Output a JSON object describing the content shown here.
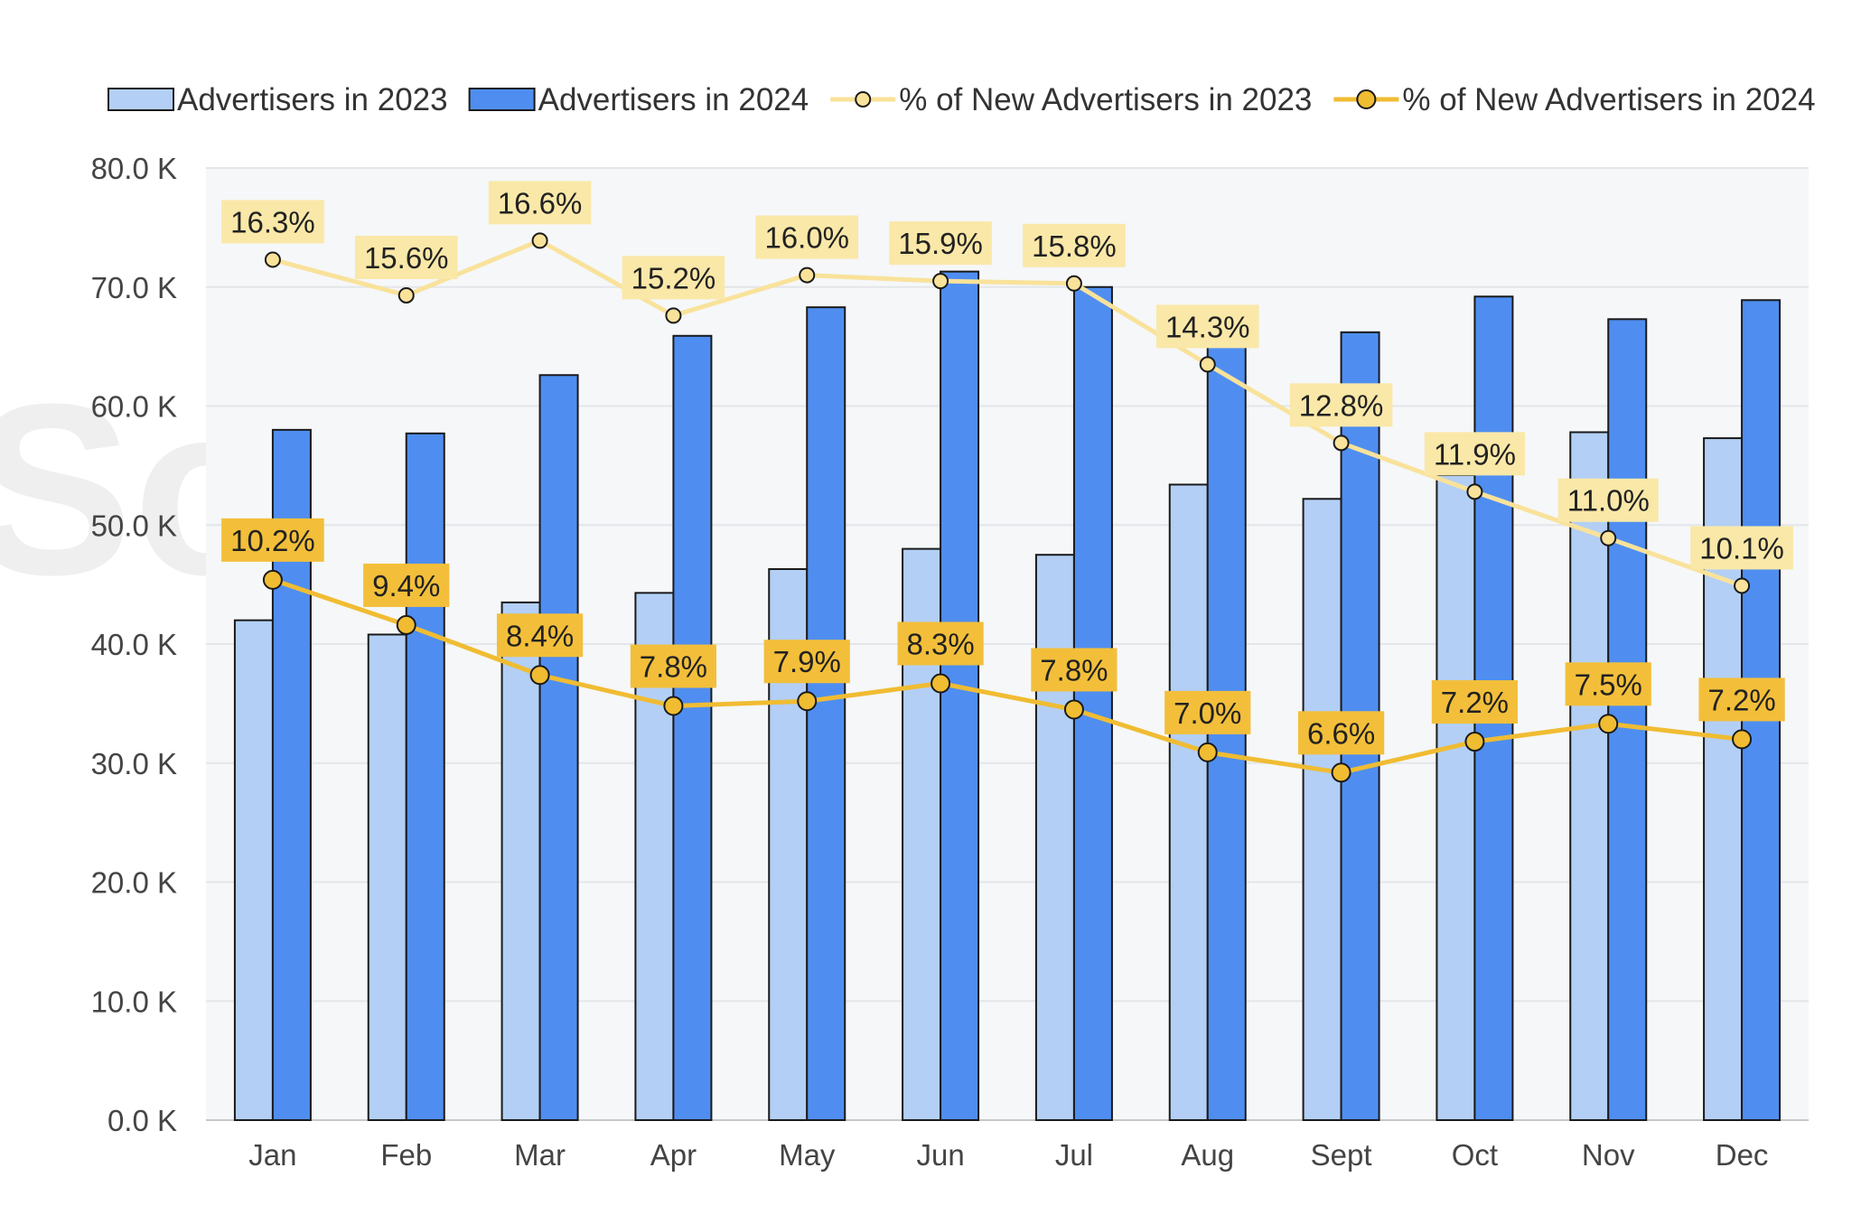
{
  "chart_data": {
    "type": "bar",
    "watermark": "SocialPeta",
    "categories": [
      "Jan",
      "Feb",
      "Mar",
      "Apr",
      "May",
      "Jun",
      "Jul",
      "Aug",
      "Sept",
      "Oct",
      "Nov",
      "Dec"
    ],
    "y_axis": {
      "min": 0,
      "max": 80000,
      "step": 10000,
      "tick_labels": [
        "0.0 K",
        "10.0 K",
        "20.0 K",
        "30.0 K",
        "40.0 K",
        "50.0 K",
        "60.0 K",
        "70.0 K",
        "80.0 K"
      ]
    },
    "grid": true,
    "legend_position": "top",
    "series": [
      {
        "name": "Advertisers in 2023",
        "type": "bar",
        "color": "#b3cff5",
        "values": [
          42000,
          40800,
          43500,
          44300,
          46300,
          48000,
          47500,
          53400,
          52200,
          54200,
          57800,
          57300
        ]
      },
      {
        "name": "Advertisers in 2024",
        "type": "bar",
        "color": "#4f8ef0",
        "values": [
          58000,
          57700,
          62600,
          65900,
          68300,
          71300,
          70000,
          65500,
          66200,
          69200,
          67300,
          68900
        ]
      },
      {
        "name": "% of New Advertisers in 2023",
        "type": "line",
        "color": "#f9e29a",
        "label_bg": "#fae8a8",
        "values": [
          16.3,
          15.6,
          16.6,
          15.2,
          16.0,
          15.9,
          15.8,
          14.3,
          12.8,
          11.9,
          11.0,
          10.1
        ],
        "labels": [
          "16.3%",
          "15.6%",
          "16.6%",
          "15.2%",
          "16.0%",
          "15.9%",
          "15.8%",
          "14.3%",
          "12.8%",
          "11.9%",
          "11.0%",
          "10.1%"
        ],
        "plot_y": [
          72300,
          69300,
          73900,
          67600,
          71000,
          70500,
          70300,
          63500,
          56900,
          52800,
          48900,
          44900
        ]
      },
      {
        "name": "% of New Advertisers in 2024",
        "type": "line",
        "color": "#f0bc32",
        "label_bg": "#f3bf3a",
        "values": [
          10.2,
          9.4,
          8.4,
          7.8,
          7.9,
          8.3,
          7.8,
          7.0,
          6.6,
          7.2,
          7.5,
          7.2
        ],
        "labels": [
          "10.2%",
          "9.4%",
          "8.4%",
          "7.8%",
          "7.9%",
          "8.3%",
          "7.8%",
          "7.0%",
          "6.6%",
          "7.2%",
          "7.5%",
          "7.2%"
        ],
        "plot_y": [
          45400,
          41600,
          37400,
          34800,
          35200,
          36700,
          34500,
          30900,
          29200,
          31800,
          33300,
          32000
        ]
      }
    ]
  }
}
